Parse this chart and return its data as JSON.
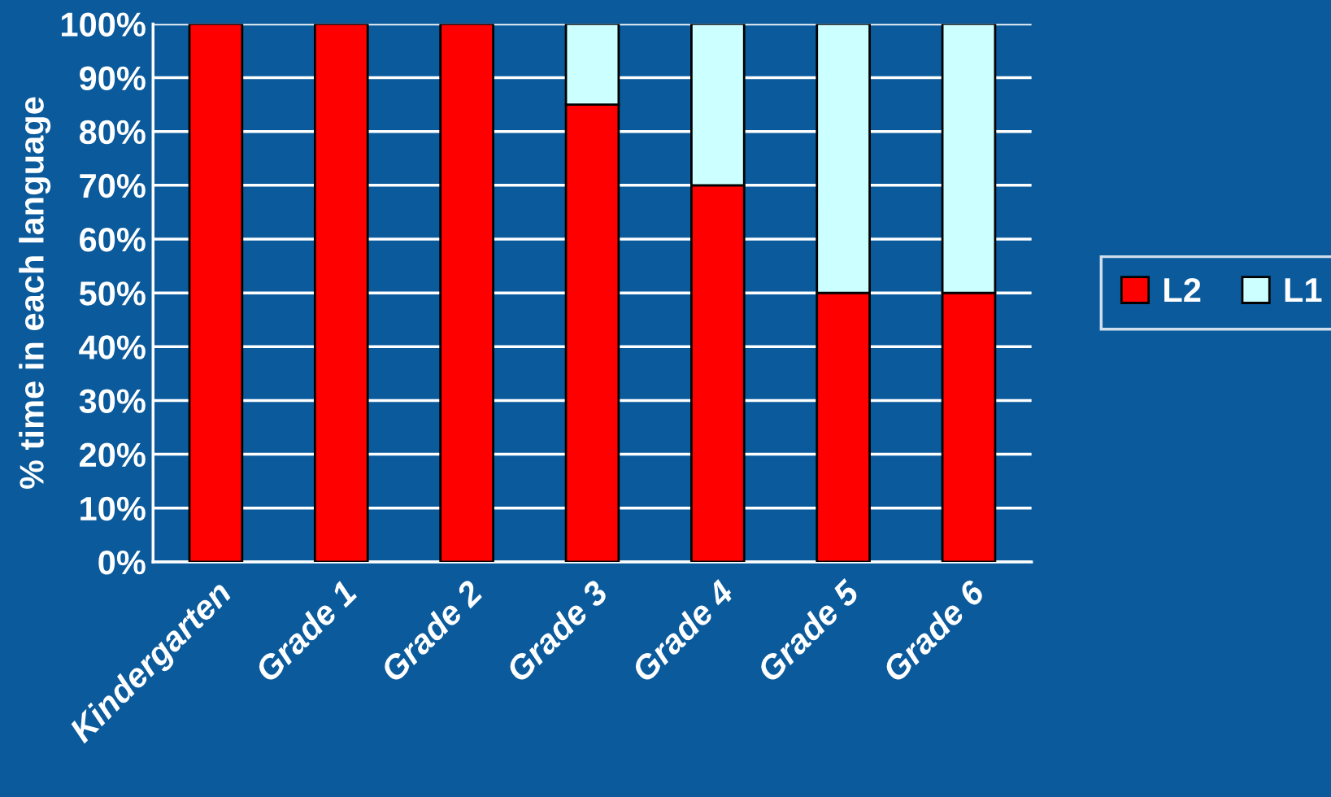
{
  "chart_data": {
    "type": "bar",
    "stacked": true,
    "ylabel": "% time in each language",
    "categories": [
      "Kindergarten",
      "Grade 1",
      "Grade 2",
      "Grade 3",
      "Grade 4",
      "Grade 5",
      "Grade 6"
    ],
    "series": [
      {
        "name": "L2",
        "color": "#ff0000",
        "values": [
          100,
          100,
          100,
          85,
          70,
          50,
          50
        ]
      },
      {
        "name": "L1",
        "color": "#ccffff",
        "values": [
          0,
          0,
          0,
          15,
          30,
          50,
          50
        ]
      }
    ],
    "ylim": [
      0,
      100
    ],
    "yticks": [
      {
        "value": 0,
        "label": "0%"
      },
      {
        "value": 10,
        "label": "10%"
      },
      {
        "value": 20,
        "label": "20%"
      },
      {
        "value": 30,
        "label": "30%"
      },
      {
        "value": 40,
        "label": "40%"
      },
      {
        "value": 50,
        "label": "50%"
      },
      {
        "value": 60,
        "label": "60%"
      },
      {
        "value": 70,
        "label": "70%"
      },
      {
        "value": 80,
        "label": "80%"
      },
      {
        "value": 90,
        "label": "90%"
      },
      {
        "value": 100,
        "label": "100%"
      }
    ],
    "grid": "y",
    "legend": "right"
  }
}
